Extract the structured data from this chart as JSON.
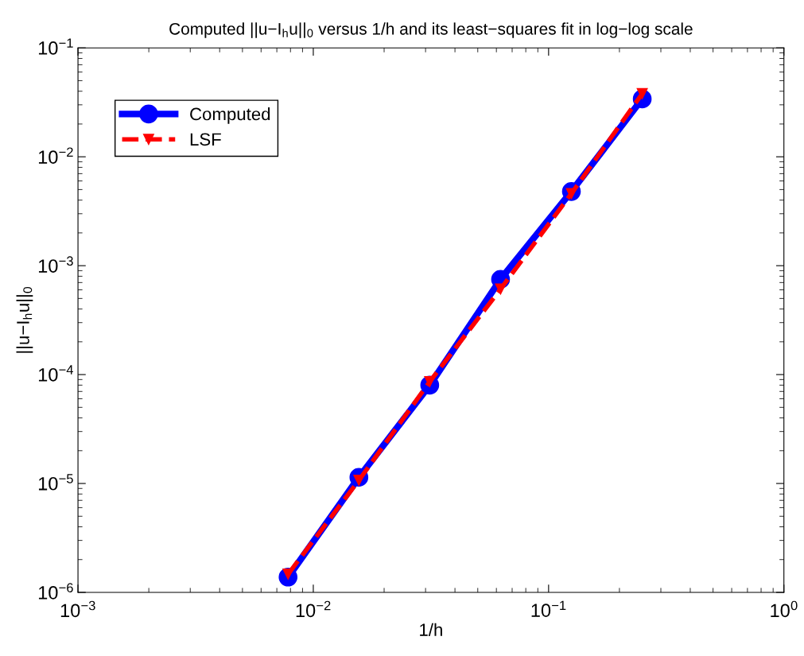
{
  "chart_data": {
    "type": "line",
    "title": "Computed ||u−I$_{h}$u||$_{0}$ versus 1/h and its least−squares fit in log−log scale",
    "xlabel": "1/h",
    "ylabel": "||u−I$_{h}$u||$_{0}$",
    "log": "xy",
    "grid": false,
    "legend": "top left",
    "x": [
      0.0078125,
      0.015625,
      0.03125,
      0.0625,
      0.125,
      0.25
    ],
    "series": [
      {
        "name": "Computed",
        "color": "#0000ff",
        "marker": "circle",
        "line_style": "solid",
        "values": [
          1.38e-06,
          1.14e-05,
          8e-05,
          0.00075,
          0.0048,
          0.034
        ]
      },
      {
        "name": "LSF",
        "color": "#ff0000",
        "marker": "triangle",
        "line_style": "dashed",
        "values": [
          1.47e-06,
          1.07e-05,
          8.6e-05,
          0.00061,
          0.0046,
          0.038
        ]
      }
    ],
    "xlim": [
      0.001,
      1
    ],
    "ylim": [
      1e-06,
      0.1
    ],
    "xticks": [
      {
        "value": 0.001,
        "label": "10$^{−3}$"
      },
      {
        "value": 0.01,
        "label": "10$^{−2}$"
      },
      {
        "value": 0.1,
        "label": "10$^{−1}$"
      },
      {
        "value": 1,
        "label": "10$^{0}$"
      }
    ],
    "yticks": [
      {
        "value": 1e-06,
        "label": "10$^{−6}$"
      },
      {
        "value": 1e-05,
        "label": "10$^{−5}$"
      },
      {
        "value": 0.0001,
        "label": "10$^{−4}$"
      },
      {
        "value": 0.001,
        "label": "10$^{−3}$"
      },
      {
        "value": 0.01,
        "label": "10$^{−2}$"
      },
      {
        "value": 0.1,
        "label": "10$^{−1}$"
      }
    ]
  }
}
